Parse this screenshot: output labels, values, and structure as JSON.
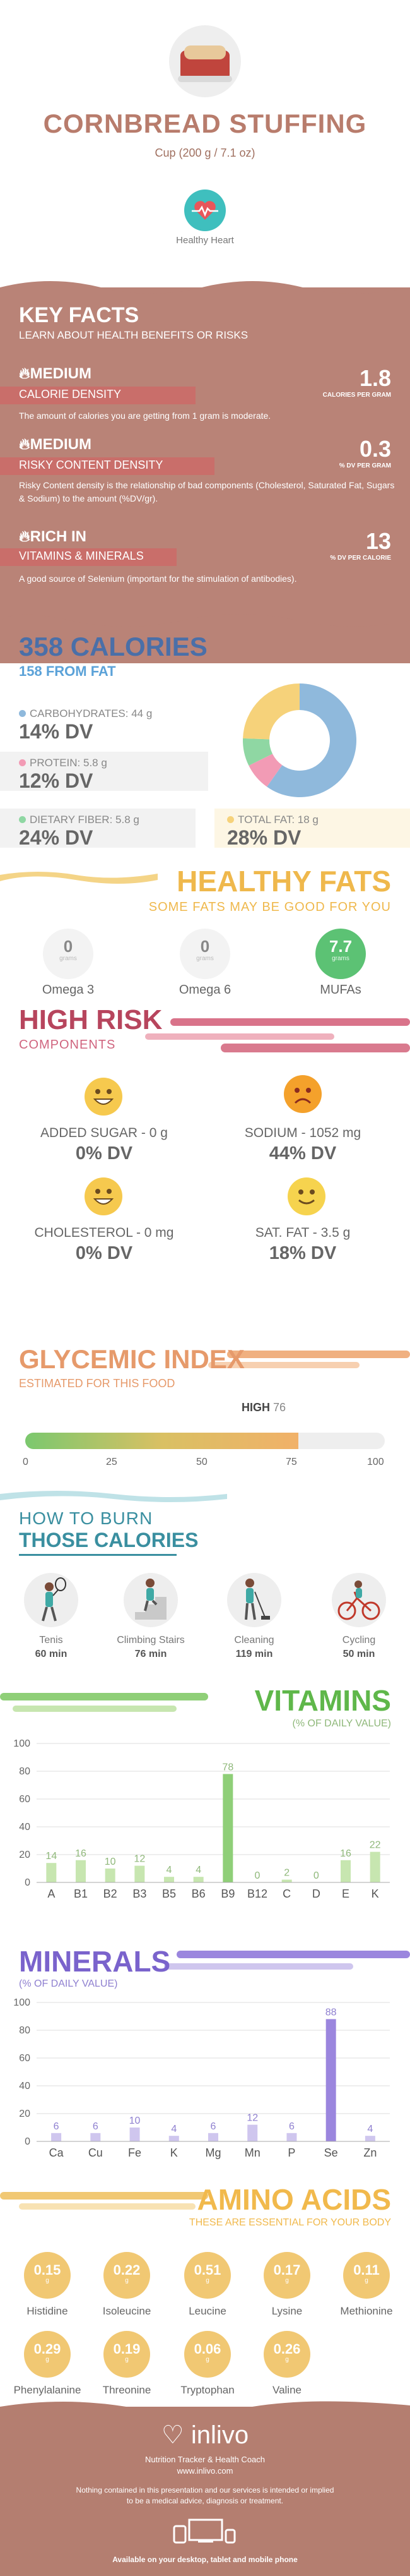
{
  "header": {
    "title": "CORNBREAD STUFFING",
    "serving": "Cup (200 g / 7.1 oz)",
    "badge_label": "Healthy Heart"
  },
  "key_facts": {
    "title": "KEY FACTS",
    "subtitle": "LEARN ABOUT HEALTH BENEFITS OR RISKS",
    "facts": [
      {
        "level": "MEDIUM",
        "name": "CALORIE DENSITY",
        "value": "1.8",
        "unit": "CALORIES PER GRAM",
        "text": "The amount of calories you are getting from 1 gram is moderate."
      },
      {
        "level": "MEDIUM",
        "name": "RISKY CONTENT DENSITY",
        "value": "0.3",
        "unit": "% DV PER GRAM",
        "text": "Risky Content density is the relationship of bad components (Cholesterol, Saturated Fat, Sugars & Sodium) to the amount (%DV/gr)."
      },
      {
        "level": "RICH  IN",
        "name": "VITAMINS & MINERALS",
        "value": "13",
        "unit": "% DV PER CALORIE",
        "text": "A good source of Selenium (important for the stimulation of antibodies)."
      }
    ]
  },
  "calories": {
    "title": "358 CALORIES",
    "subtitle": "158 FROM FAT",
    "nutrients": [
      {
        "label": "CARBOHYDRATES: 44 g",
        "dv": "14% DV",
        "color": "#8fb9dc"
      },
      {
        "label": "PROTEIN: 5.8 g",
        "dv": "12% DV",
        "color": "#f29bb5"
      },
      {
        "label": "DIETARY FIBER: 5.8 g",
        "dv": "24% DV",
        "color": "#8fd7a3"
      },
      {
        "label": "TOTAL FAT: 18 g",
        "dv": "28% DV",
        "color": "#f6d27a"
      }
    ],
    "pie": [
      {
        "name": "carbohydrates",
        "value": 44,
        "color": "#8fb9dc"
      },
      {
        "name": "protein",
        "value": 5.8,
        "color": "#f29bb5"
      },
      {
        "name": "dietary fiber",
        "value": 5.8,
        "color": "#8fd7a3"
      },
      {
        "name": "total fat",
        "value": 18,
        "color": "#f6d27a"
      }
    ]
  },
  "healthy_fats": {
    "title": "HEALTHY FATS",
    "subtitle": "SOME FATS MAY BE GOOD FOR YOU",
    "items": [
      {
        "value": "0",
        "unit": "grams",
        "label": "Omega 3"
      },
      {
        "value": "0",
        "unit": "grams",
        "label": "Omega 6"
      },
      {
        "value": "7.7",
        "unit": "grams",
        "label": "MUFAs"
      }
    ]
  },
  "high_risk": {
    "title": "HIGH RISK",
    "subtitle": "COMPONENTS",
    "items": [
      {
        "label": "ADDED SUGAR - 0 g",
        "dv": "0% DV",
        "face": "happy"
      },
      {
        "label": "SODIUM - 1052 mg",
        "dv": "44% DV",
        "face": "sad"
      },
      {
        "label": "CHOLESTEROL - 0 mg",
        "dv": "0% DV",
        "face": "happy"
      },
      {
        "label": "SAT. FAT - 3.5 g",
        "dv": "18% DV",
        "face": "smile"
      }
    ]
  },
  "glycemic": {
    "title": "GLYCEMIC INDEX",
    "subtitle": "ESTIMATED FOR THIS FOOD",
    "level": "HIGH",
    "value": 76,
    "ticks": [
      "0",
      "25",
      "50",
      "75",
      "100"
    ]
  },
  "burn": {
    "title1": "HOW TO BURN",
    "title2": "THOSE CALORIES",
    "activities": [
      {
        "name": "Tenis",
        "time": "60 min",
        "icon": "tennis-icon"
      },
      {
        "name": "Climbing Stairs",
        "time": "76 min",
        "icon": "stairs-icon"
      },
      {
        "name": "Cleaning",
        "time": "119 min",
        "icon": "cleaning-icon"
      },
      {
        "name": "Cycling",
        "time": "50 min",
        "icon": "cycling-icon"
      }
    ]
  },
  "vitamins": {
    "title": "VITAMINS",
    "subtitle": "(% OF DAILY VALUE)"
  },
  "minerals": {
    "title": "MINERALS",
    "subtitle": "(% OF DAILY VALUE)"
  },
  "chart_data": [
    {
      "type": "bar",
      "title": "VITAMINS",
      "categories": [
        "A",
        "B1",
        "B2",
        "B3",
        "B5",
        "B6",
        "B9",
        "B12",
        "C",
        "D",
        "E",
        "K"
      ],
      "values": [
        14,
        16,
        10,
        12,
        4,
        4,
        78,
        0,
        2,
        0,
        16,
        22
      ],
      "ylim": [
        0,
        100
      ],
      "yticks": [
        0,
        20,
        40,
        60,
        80,
        100
      ],
      "colors": {
        "bar": "#c7e6b0",
        "highlight": "#8fcf78",
        "text": "#8fb87a"
      }
    },
    {
      "type": "bar",
      "title": "MINERALS",
      "categories": [
        "Ca",
        "Cu",
        "Fe",
        "K",
        "Mg",
        "Mn",
        "P",
        "Se",
        "Zn"
      ],
      "values": [
        6,
        6,
        10,
        4,
        6,
        12,
        6,
        88,
        4
      ],
      "ylim": [
        0,
        100
      ],
      "yticks": [
        0,
        20,
        40,
        60,
        80,
        100
      ],
      "colors": {
        "bar": "#cfc6ee",
        "highlight": "#9b86de",
        "text": "#8f80d0"
      }
    }
  ],
  "amino": {
    "title": "AMINO ACIDS",
    "subtitle": "THESE ARE ESSENTIAL FOR YOUR BODY",
    "unit": "g",
    "row1": [
      {
        "value": "0.15",
        "label": "Histidine"
      },
      {
        "value": "0.22",
        "label": "Isoleucine"
      },
      {
        "value": "0.51",
        "label": "Leucine"
      },
      {
        "value": "0.17",
        "label": "Lysine"
      },
      {
        "value": "0.11",
        "label": "Methionine"
      }
    ],
    "row2": [
      {
        "value": "0.29",
        "label": "Phenylalanine"
      },
      {
        "value": "0.19",
        "label": "Threonine"
      },
      {
        "value": "0.06",
        "label": "Tryptophan"
      },
      {
        "value": "0.26",
        "label": "Valine"
      }
    ]
  },
  "footer": {
    "brand": "inlivo",
    "tagline": "Nutrition Tracker & Health Coach",
    "url": "www.inlivo.com",
    "disclaimer": "Nothing contained in this presentation and our services is intended or implied to be a medical advice, diagnosis or treatment.",
    "available": "Available on your desktop, tablet and mobile phone"
  }
}
